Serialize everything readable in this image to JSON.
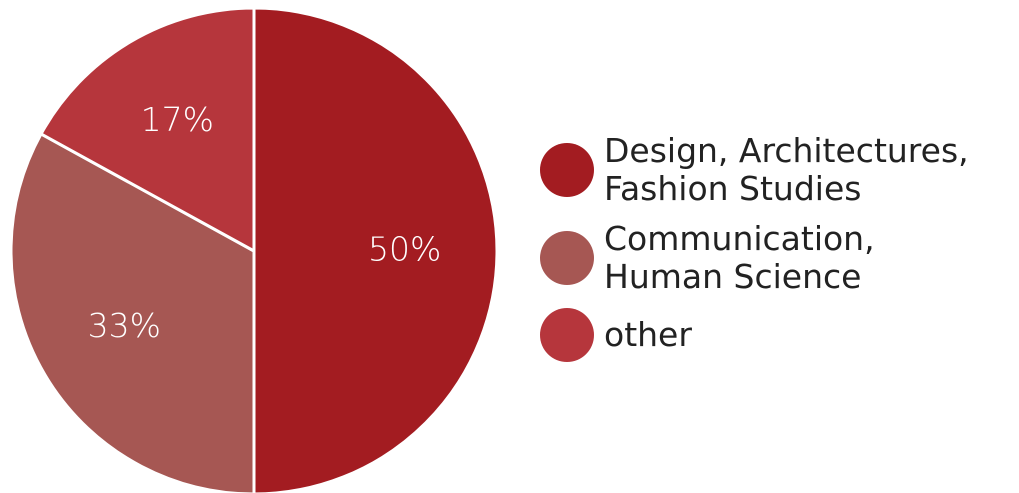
{
  "chart_data": {
    "type": "pie",
    "slices": [
      {
        "label": "Design, Architectures, Fashion Studies",
        "value": 50,
        "display": "50%",
        "color": "#a31c21"
      },
      {
        "label": "Communication, Human Science",
        "value": 33,
        "display": "33%",
        "color": "#a65753"
      },
      {
        "label": "other",
        "value": 17,
        "display": "17%",
        "color": "#b6363c"
      }
    ],
    "start_angle_deg": 0,
    "direction": "clockwise",
    "slice_separator_color": "#ffffff",
    "legend_position": "right"
  },
  "legend": {
    "items": [
      {
        "lines": [
          "Design, Architectures,",
          "Fashion Studies"
        ],
        "color": "#a31c21"
      },
      {
        "lines": [
          "Communication,",
          "Human Science"
        ],
        "color": "#a65753"
      },
      {
        "lines": [
          "other"
        ],
        "color": "#b6363c"
      }
    ]
  }
}
